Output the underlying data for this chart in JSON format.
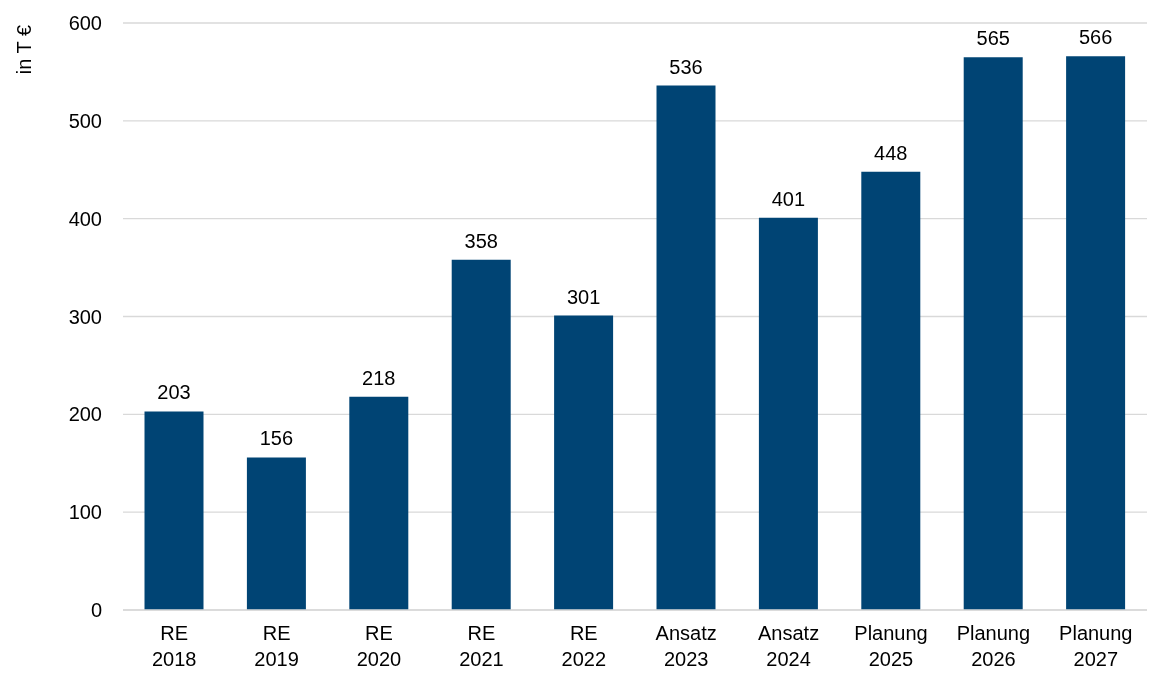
{
  "chart_data": {
    "type": "bar",
    "ylabel": "in T €",
    "categories": [
      "RE 2018",
      "RE 2019",
      "RE 2020",
      "RE 2021",
      "RE 2022",
      "Ansatz 2023",
      "Ansatz 2024",
      "Planung 2025",
      "Planung 2026",
      "Planung 2027"
    ],
    "values": [
      203,
      156,
      218,
      358,
      301,
      536,
      401,
      448,
      565,
      566
    ],
    "color": "#004474",
    "ylim": [
      0,
      600
    ],
    "yticks": [
      0,
      100,
      200,
      300,
      400,
      500,
      600
    ],
    "grid": "y",
    "data_labels": true
  }
}
